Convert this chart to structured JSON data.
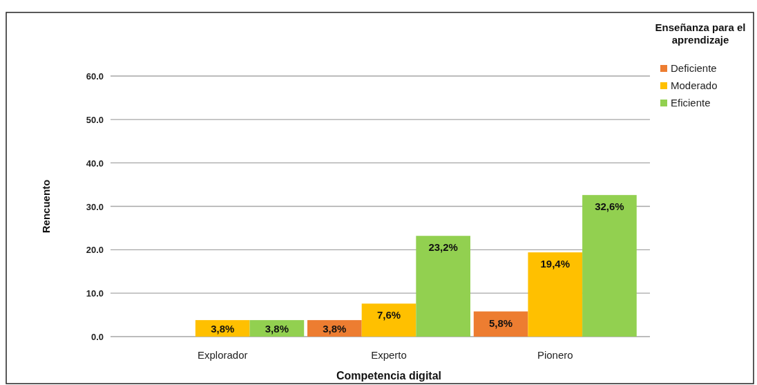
{
  "chart_data": {
    "type": "bar",
    "xlabel": "Competencia digital",
    "ylabel": "Rencuento",
    "legend_title": "Enseñanza para el aprendizaje",
    "categories": [
      "Explorador",
      "Experto",
      "Pionero"
    ],
    "series": [
      {
        "name": "Deficiente",
        "color": "#ed7d31",
        "values": [
          0,
          3.8,
          5.8
        ],
        "value_labels": [
          null,
          "3,8%",
          "5,8%"
        ]
      },
      {
        "name": "Moderado",
        "color": "#ffc000",
        "values": [
          3.8,
          7.6,
          19.4
        ],
        "value_labels": [
          "3,8%",
          "7,6%",
          "19,4%"
        ]
      },
      {
        "name": "Eficiente",
        "color": "#92d050",
        "values": [
          3.8,
          23.2,
          32.6
        ],
        "value_labels": [
          "3,8%",
          "23,2%",
          "32,6%"
        ]
      }
    ],
    "ylim": [
      0,
      60
    ],
    "yticks": [
      {
        "value": 0,
        "label": "0.0"
      },
      {
        "value": 10,
        "label": "10.0"
      },
      {
        "value": 20,
        "label": "20.0"
      },
      {
        "value": 30,
        "label": "30.0"
      },
      {
        "value": 40,
        "label": "40.0"
      },
      {
        "value": 50,
        "label": "50.0"
      },
      {
        "value": 60,
        "label": "60.0"
      }
    ],
    "grid": "y",
    "legend": "top right"
  }
}
